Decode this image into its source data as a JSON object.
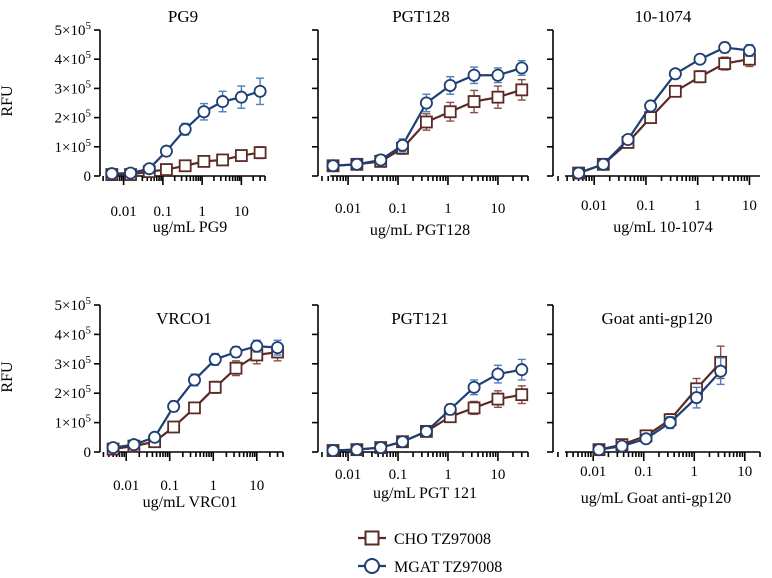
{
  "y_axis_label": "RFU",
  "legend": {
    "cho_label": "CHO TZ97008",
    "mgat_label": "MGAT TZ97008"
  },
  "colors": {
    "cho": "#5a2a24",
    "mgat": "#1f3f73",
    "cho_error": "#8a5148",
    "mgat_error": "#4d7fc2"
  },
  "chart_data": [
    {
      "type": "line",
      "title": "PG9",
      "xlabel": "ug/mL PG9",
      "ylabel": "RFU",
      "xscale": "log",
      "xlim": [
        0.0025,
        40
      ],
      "ylim": [
        0,
        500000
      ],
      "yticks": [
        0,
        100000,
        200000,
        300000,
        400000,
        500000
      ],
      "ytick_labels": [
        [
          "0",
          ""
        ],
        [
          "1×10",
          "5"
        ],
        [
          "2×10",
          "5"
        ],
        [
          "3×10",
          "5"
        ],
        [
          "4×10",
          "5"
        ],
        [
          "5×10",
          "5"
        ]
      ],
      "xticks": [
        0.01,
        0.1,
        1,
        10
      ],
      "xtick_labels": [
        "0.01",
        "0.1",
        "1",
        "10"
      ],
      "series": [
        {
          "name": "CHO TZ97008",
          "x": [
            0.005,
            0.015,
            0.045,
            0.123,
            0.37,
            1.11,
            3.33,
            10,
            30
          ],
          "y": [
            5000,
            5000,
            15000,
            22000,
            35000,
            50000,
            55000,
            70000,
            80000
          ],
          "err": [
            3000,
            3000,
            5000,
            8000,
            10000,
            10000,
            12000,
            15000,
            20000
          ]
        },
        {
          "name": "MGAT TZ97008",
          "x": [
            0.005,
            0.015,
            0.045,
            0.123,
            0.37,
            1.11,
            3.33,
            10,
            30
          ],
          "y": [
            8000,
            10000,
            25000,
            85000,
            160000,
            220000,
            255000,
            270000,
            290000
          ],
          "err": [
            4000,
            4000,
            6000,
            12000,
            20000,
            28000,
            35000,
            38000,
            45000
          ]
        }
      ]
    },
    {
      "type": "line",
      "title": "PGT128",
      "xlabel": "ug/mL PGT128",
      "ylabel": "",
      "xscale": "log",
      "xlim": [
        0.0025,
        40
      ],
      "ylim": [
        0,
        500000
      ],
      "yticks": [
        0,
        100000,
        200000,
        300000,
        400000,
        500000
      ],
      "ytick_labels": [],
      "xticks": [
        0.01,
        0.1,
        1,
        10
      ],
      "xtick_labels": [
        "0.01",
        "0.1",
        "1",
        "10"
      ],
      "series": [
        {
          "name": "CHO TZ97008",
          "x": [
            0.005,
            0.015,
            0.045,
            0.123,
            0.37,
            1.11,
            3.33,
            10,
            30
          ],
          "y": [
            35000,
            40000,
            50000,
            95000,
            185000,
            220000,
            255000,
            270000,
            295000
          ],
          "err": [
            15000,
            15000,
            15000,
            20000,
            28000,
            32000,
            38000,
            38000,
            35000
          ]
        },
        {
          "name": "MGAT TZ97008",
          "x": [
            0.005,
            0.015,
            0.045,
            0.123,
            0.37,
            1.11,
            3.33,
            10,
            30
          ],
          "y": [
            35000,
            40000,
            55000,
            105000,
            250000,
            310000,
            345000,
            345000,
            370000
          ],
          "err": [
            15000,
            15000,
            18000,
            22000,
            30000,
            30000,
            28000,
            25000,
            25000
          ]
        }
      ]
    },
    {
      "type": "line",
      "title": "10-1074",
      "xlabel": "ug/mL 10-1074",
      "ylabel": "",
      "xscale": "log",
      "xlim": [
        0.0016,
        16
      ],
      "ylim": [
        0,
        500000
      ],
      "yticks": [
        0,
        100000,
        200000,
        300000,
        400000,
        500000
      ],
      "ytick_labels": [],
      "xticks": [
        0.01,
        0.1,
        1,
        10
      ],
      "xtick_labels": [
        "0.01",
        "0.1",
        "1",
        "10"
      ],
      "series": [
        {
          "name": "CHO TZ97008",
          "x": [
            0.005,
            0.015,
            0.045,
            0.123,
            0.37,
            1.11,
            3.33,
            10
          ],
          "y": [
            10000,
            40000,
            115000,
            200000,
            290000,
            340000,
            385000,
            400000
          ],
          "err": [
            5000,
            8000,
            12000,
            15000,
            18000,
            20000,
            22000,
            25000
          ]
        },
        {
          "name": "MGAT TZ97008",
          "x": [
            0.005,
            0.015,
            0.045,
            0.123,
            0.37,
            1.11,
            3.33,
            10
          ],
          "y": [
            10000,
            40000,
            125000,
            240000,
            350000,
            400000,
            440000,
            430000
          ],
          "err": [
            5000,
            8000,
            12000,
            15000,
            15000,
            15000,
            18000,
            20000
          ]
        }
      ]
    },
    {
      "type": "line",
      "title": "VRCO1",
      "xlabel": "ug/mL VRC01",
      "ylabel": "RFU",
      "xscale": "log",
      "xlim": [
        0.0025,
        40
      ],
      "ylim": [
        0,
        500000
      ],
      "yticks": [
        0,
        100000,
        200000,
        300000,
        400000,
        500000
      ],
      "ytick_labels": [
        [
          "0",
          ""
        ],
        [
          "1×10",
          "5"
        ],
        [
          "2×10",
          "5"
        ],
        [
          "3×10",
          "5"
        ],
        [
          "4×10",
          "5"
        ],
        [
          "5×10",
          "5"
        ]
      ],
      "xticks": [
        0.01,
        0.1,
        1,
        10
      ],
      "xtick_labels": [
        "0.01",
        "0.1",
        "1",
        "10"
      ],
      "series": [
        {
          "name": "CHO TZ97008",
          "x": [
            0.005,
            0.015,
            0.045,
            0.123,
            0.37,
            1.11,
            3.33,
            10,
            30
          ],
          "y": [
            10000,
            20000,
            35000,
            85000,
            150000,
            220000,
            285000,
            330000,
            340000
          ],
          "err": [
            5000,
            5000,
            8000,
            12000,
            15000,
            20000,
            25000,
            30000,
            30000
          ]
        },
        {
          "name": "MGAT TZ97008",
          "x": [
            0.005,
            0.015,
            0.045,
            0.123,
            0.37,
            1.11,
            3.33,
            10,
            30
          ],
          "y": [
            15000,
            25000,
            50000,
            155000,
            245000,
            315000,
            340000,
            360000,
            355000
          ],
          "err": [
            5000,
            5000,
            10000,
            18000,
            20000,
            20000,
            18000,
            20000,
            25000
          ]
        }
      ]
    },
    {
      "type": "line",
      "title": "PGT121",
      "xlabel": "ug/mL PGT 121",
      "ylabel": "",
      "xscale": "log",
      "xlim": [
        0.0025,
        40
      ],
      "ylim": [
        0,
        500000
      ],
      "yticks": [
        0,
        100000,
        200000,
        300000,
        400000,
        500000
      ],
      "ytick_labels": [],
      "xticks": [
        0.01,
        0.1,
        1,
        10
      ],
      "xtick_labels": [
        "0.01",
        "0.1",
        "1",
        "10"
      ],
      "series": [
        {
          "name": "CHO TZ97008",
          "x": [
            0.005,
            0.015,
            0.045,
            0.123,
            0.37,
            1.11,
            3.33,
            10,
            30
          ],
          "y": [
            5000,
            8000,
            15000,
            35000,
            70000,
            120000,
            150000,
            180000,
            195000
          ],
          "err": [
            3000,
            4000,
            5000,
            8000,
            12000,
            18000,
            22000,
            28000,
            30000
          ]
        },
        {
          "name": "MGAT TZ97008",
          "x": [
            0.005,
            0.015,
            0.045,
            0.123,
            0.37,
            1.11,
            3.33,
            10,
            30
          ],
          "y": [
            5000,
            8000,
            15000,
            35000,
            70000,
            145000,
            220000,
            265000,
            280000
          ],
          "err": [
            3000,
            4000,
            5000,
            8000,
            12000,
            18000,
            25000,
            30000,
            35000
          ]
        }
      ]
    },
    {
      "type": "line",
      "title": "Goat anti-gp120",
      "xlabel": "ug/mL Goat anti-gp120",
      "ylabel": "",
      "xscale": "log",
      "xlim": [
        0.0016,
        20
      ],
      "ylim": [
        0,
        500000
      ],
      "yticks": [
        0,
        100000,
        200000,
        300000,
        400000,
        500000
      ],
      "ytick_labels": [],
      "xticks": [
        0.01,
        0.1,
        1,
        10
      ],
      "xtick_labels": [
        "0.01",
        "0.1",
        "1",
        "10"
      ],
      "series": [
        {
          "name": "CHO TZ97008",
          "x": [
            0.013,
            0.037,
            0.111,
            0.333,
            1.11,
            3.33
          ],
          "y": [
            8000,
            25000,
            55000,
            110000,
            215000,
            305000
          ],
          "err": [
            4000,
            6000,
            10000,
            20000,
            35000,
            55000
          ]
        },
        {
          "name": "MGAT TZ97008",
          "x": [
            0.013,
            0.037,
            0.111,
            0.333,
            1.11,
            3.33
          ],
          "y": [
            8000,
            20000,
            45000,
            100000,
            185000,
            275000
          ],
          "err": [
            4000,
            6000,
            10000,
            20000,
            35000,
            45000
          ]
        }
      ]
    }
  ]
}
